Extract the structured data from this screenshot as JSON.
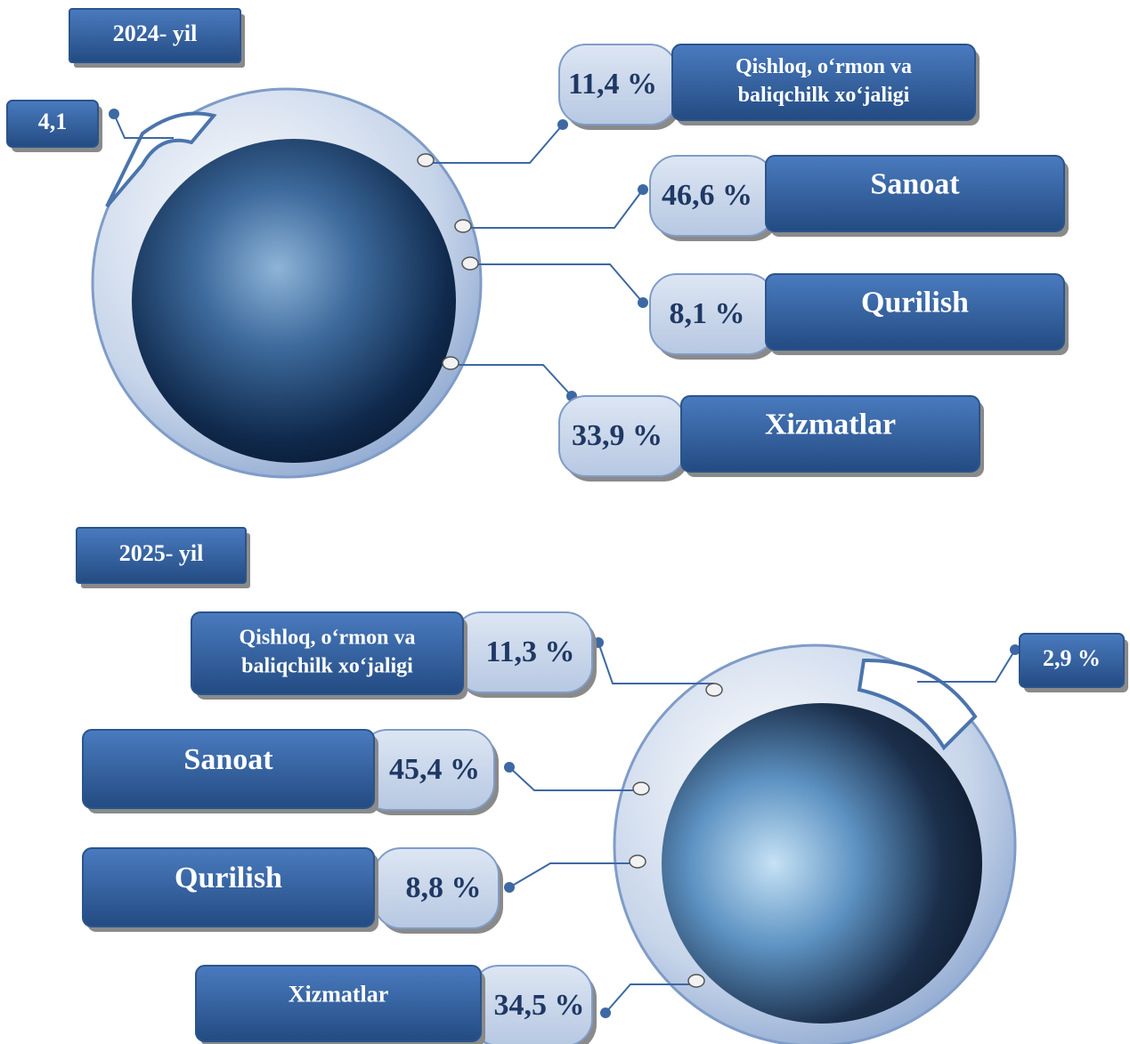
{
  "sections": [
    {
      "year": "2024- yil",
      "small_value": "4,1",
      "items": [
        {
          "label": [
            "Qishloq, o‘rmon va",
            "baliqchilk xo‘jaligi"
          ],
          "value": "11,4 %"
        },
        {
          "label": "Sanoat",
          "value": "46,6 %"
        },
        {
          "label": "Qurilish",
          "value": "8,1 %"
        },
        {
          "label": "Xizmatlar",
          "value": "33,9 %"
        }
      ]
    },
    {
      "year": "2025- yil",
      "small_value": "2,9 %",
      "items": [
        {
          "label": [
            "Qishloq, o‘rmon va",
            "baliqchilk xo‘jaligi"
          ],
          "value": "11,3 %"
        },
        {
          "label": "Sanoat",
          "value": "45,4 %"
        },
        {
          "label": "Qurilish",
          "value": "8,8 %"
        },
        {
          "label": "Xizmatlar",
          "value": "34,5 %"
        }
      ]
    }
  ]
}
